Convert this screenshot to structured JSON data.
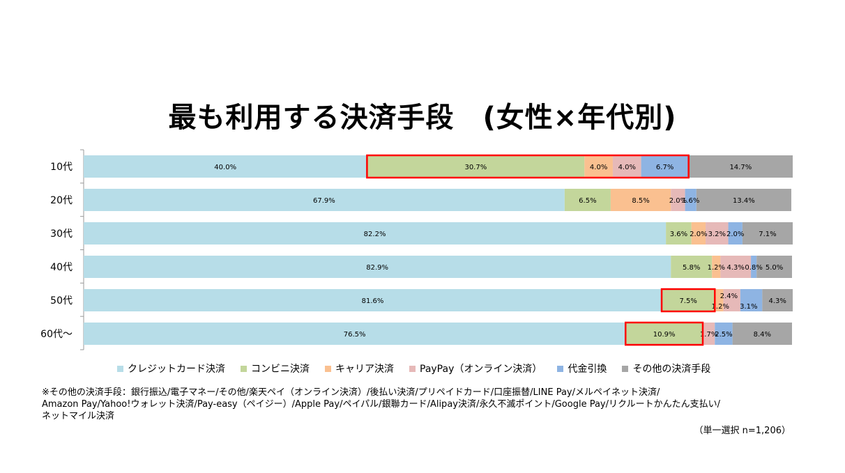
{
  "title": "最も利用する決済手段　(女性×年代別)",
  "legend": [
    {
      "label": "クレジットカード決済",
      "color": "#b7dde8"
    },
    {
      "label": "コンビニ決済",
      "color": "#c3d69b"
    },
    {
      "label": "キャリア決済",
      "color": "#fac090"
    },
    {
      "label": "PayPay（オンライン決済）",
      "color": "#e6b9b8"
    },
    {
      "label": "代金引換",
      "color": "#8eb4e3"
    },
    {
      "label": "その他の決済手段",
      "color": "#a6a6a6"
    }
  ],
  "note": {
    "line1": "※その他の決済手段：銀行振込/電子マネー/その他/楽天ペイ（オンライン決済）/後払い決済/プリペイドカード/口座振替/LINE Pay/メルペイネット決済/",
    "line2": "Amazon Pay/Yahoo!ウォレット決済/Pay-easy（ペイジー）/Apple Pay/ペイパル/銀聯カード/Alipay決済/永久不滅ポイント/Google Pay/リクルートかんたん支払い/",
    "line3": "ネットマイル決済"
  },
  "sample_note": "（単一選択 n=1,206）",
  "chart_data": {
    "type": "bar",
    "orientation": "horizontal",
    "stacked": true,
    "normalized": true,
    "categories": [
      "10代",
      "20代",
      "30代",
      "40代",
      "50代",
      "60代～"
    ],
    "series": [
      {
        "name": "クレジットカード決済",
        "values": [
          40.0,
          67.9,
          82.2,
          82.9,
          81.6,
          76.5
        ],
        "labels": [
          "40.0%",
          "67.9%",
          "82.2%",
          "82.9%",
          "81.6%",
          "76.5%"
        ]
      },
      {
        "name": "コンビニ決済",
        "values": [
          30.7,
          6.5,
          3.6,
          5.8,
          7.5,
          10.9
        ],
        "labels": [
          "30.7%",
          "6.5%",
          "3.6%",
          "5.8%",
          "7.5%",
          "10.9%"
        ]
      },
      {
        "name": "キャリア決済",
        "values": [
          4.0,
          8.5,
          2.0,
          1.2,
          1.2,
          0.0
        ],
        "labels": [
          "4.0%",
          "8.5%",
          "2.0%",
          "1.2%",
          "1.2%",
          ""
        ]
      },
      {
        "name": "PayPay（オンライン決済）",
        "values": [
          4.0,
          2.0,
          3.2,
          4.3,
          2.4,
          1.7
        ],
        "labels": [
          "4.0%",
          "2.0%",
          "3.2%",
          "4.3%",
          "2.4%",
          "1.7%"
        ]
      },
      {
        "name": "代金引換",
        "values": [
          6.7,
          1.6,
          2.0,
          0.8,
          3.1,
          2.5
        ],
        "labels": [
          "6.7%",
          "1.6%",
          "2.0%",
          "0.8%",
          "3.1%",
          "2.5%"
        ]
      },
      {
        "name": "その他の決済手段",
        "values": [
          14.7,
          13.4,
          7.1,
          5.0,
          4.3,
          8.4
        ],
        "labels": [
          "14.7%",
          "13.4%",
          "7.1%",
          "5.0%",
          "4.3%",
          "8.4%"
        ]
      }
    ],
    "xlim": [
      0,
      100
    ],
    "highlights": [
      {
        "category": "10代",
        "from_series": "コンビニ決済",
        "to_series": "代金引換",
        "color": "#ff0000"
      },
      {
        "category": "50代",
        "from_series": "コンビニ決済",
        "to_series": "コンビニ決済",
        "color": "#ff0000"
      },
      {
        "category": "60代～",
        "from_series": "コンビニ決済",
        "to_series": "コンビニ決済",
        "color": "#ff0000"
      }
    ]
  }
}
